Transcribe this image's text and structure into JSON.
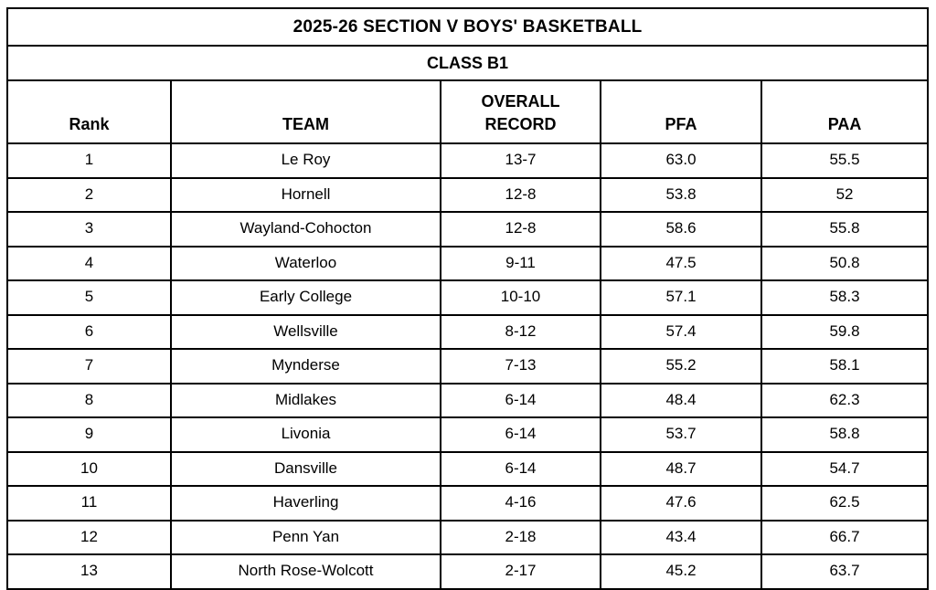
{
  "table": {
    "title": "2025-26 SECTION V BOYS' BASKETBALL",
    "subtitle": "CLASS B1",
    "columns": [
      "Rank",
      "TEAM",
      "OVERALL\nRECORD",
      "PFA",
      "PAA"
    ],
    "rows": [
      [
        "1",
        "Le Roy",
        "13-7",
        "63.0",
        "55.5"
      ],
      [
        "2",
        "Hornell",
        "12-8",
        "53.8",
        "52"
      ],
      [
        "3",
        "Wayland-Cohocton",
        "12-8",
        "58.6",
        "55.8"
      ],
      [
        "4",
        "Waterloo",
        "9-11",
        "47.5",
        "50.8"
      ],
      [
        "5",
        "Early College",
        "10-10",
        "57.1",
        "58.3"
      ],
      [
        "6",
        "Wellsville",
        "8-12",
        "57.4",
        "59.8"
      ],
      [
        "7",
        "Mynderse",
        "7-13",
        "55.2",
        "58.1"
      ],
      [
        "8",
        "Midlakes",
        "6-14",
        "48.4",
        "62.3"
      ],
      [
        "9",
        "Livonia",
        "6-14",
        "53.7",
        "58.8"
      ],
      [
        "10",
        "Dansville",
        "6-14",
        "48.7",
        "54.7"
      ],
      [
        "11",
        "Haverling",
        "4-16",
        "47.6",
        "62.5"
      ],
      [
        "12",
        "Penn Yan",
        "2-18",
        "43.4",
        "66.7"
      ],
      [
        "13",
        "North Rose-Wolcott",
        "2-17",
        "45.2",
        "63.7"
      ]
    ]
  }
}
